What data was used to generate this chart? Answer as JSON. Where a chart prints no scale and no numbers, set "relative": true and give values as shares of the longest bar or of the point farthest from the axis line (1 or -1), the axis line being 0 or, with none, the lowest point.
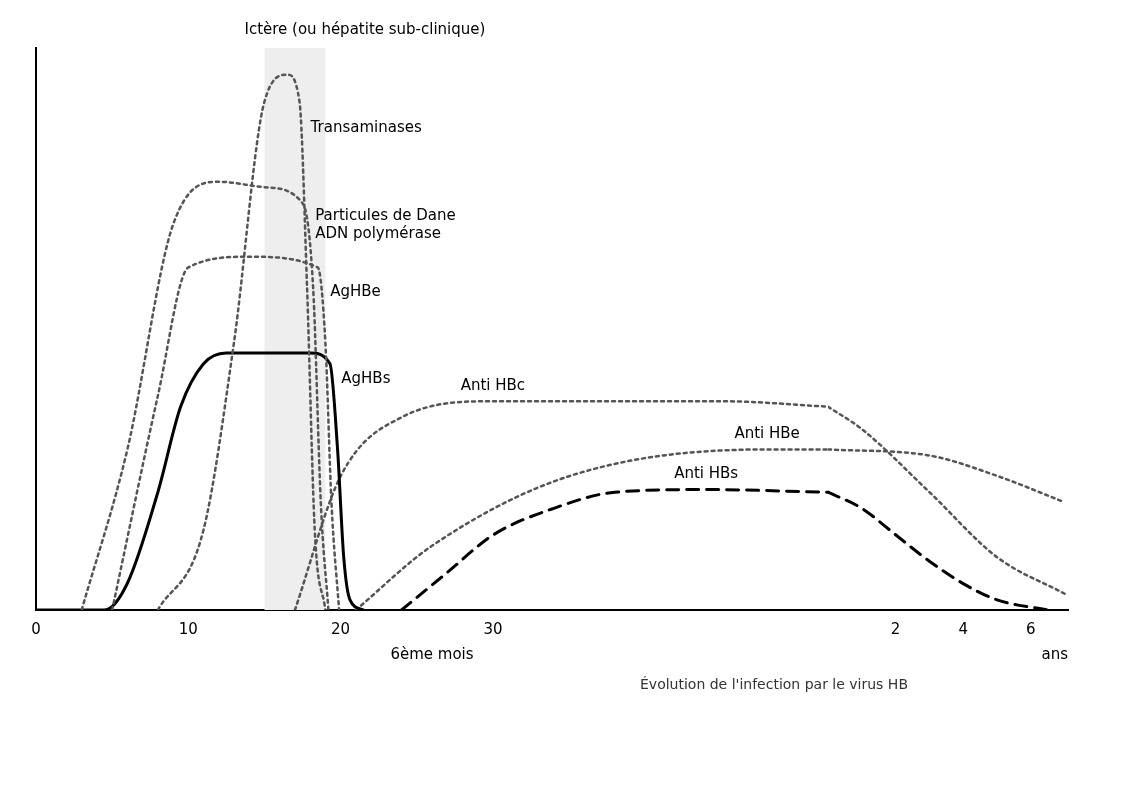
{
  "chart_data": [
    {
      "type": "line",
      "relative": true,
      "xlabel": "6ème mois",
      "xlim": [
        0,
        52
      ],
      "xticks": [
        0,
        10,
        20,
        30
      ],
      "grid": false,
      "legend": false,
      "marker": "none",
      "bands": [
        {
          "axis": "x",
          "from": 15,
          "to": 19,
          "label": "Ictère (ou hépatite sub-clinique)",
          "color": "#eeeeee"
        }
      ],
      "annotations": [
        "Évolution de l'infection par le virus HB"
      ],
      "series": [
        {
          "name": "Transaminases",
          "color": "#555555",
          "line_style": "dotted",
          "x": [
            8,
            11,
            13,
            15,
            16.5,
            17.3,
            17.8,
            18.3,
            19
          ],
          "values": [
            0,
            0.15,
            0.5,
            0.95,
            1,
            0.95,
            0.6,
            0.15,
            0
          ]
        },
        {
          "name": "Particules de Dane\nADN polymérase",
          "color": "#555555",
          "line_style": "dotted",
          "x": [
            3,
            6,
            9,
            12,
            15,
            17.5,
            18.2,
            18.7,
            19.2
          ],
          "values": [
            0,
            0.3,
            0.72,
            0.8,
            0.79,
            0.76,
            0.6,
            0.2,
            0
          ]
        },
        {
          "name": "AgHBe",
          "color": "#555555",
          "line_style": "dotted",
          "x": [
            5,
            8,
            10,
            14,
            18.5,
            19,
            19.4,
            19.9
          ],
          "values": [
            0,
            0.4,
            0.64,
            0.66,
            0.64,
            0.5,
            0.2,
            0
          ]
        },
        {
          "name": "AgHBs",
          "color": "#000000",
          "line_style": "solid",
          "x": [
            0,
            4.5,
            6,
            8,
            9.5,
            11,
            12.5,
            18,
            19.3,
            19.8,
            20.2,
            20.6,
            21.5
          ],
          "values": [
            0,
            0,
            0.05,
            0.22,
            0.38,
            0.46,
            0.48,
            0.48,
            0.46,
            0.3,
            0.1,
            0.02,
            0
          ]
        },
        {
          "name": "Anti HBe",
          "color": "#555555",
          "line_style": "dotted",
          "x": [
            21,
            26,
            35,
            48,
            52
          ],
          "values": [
            0,
            0.12,
            0.25,
            0.3,
            0.3
          ]
        },
        {
          "name": "Anti HBc",
          "color": "#555555",
          "line_style": "dotted",
          "x": [
            17,
            20,
            24,
            30,
            45,
            52
          ],
          "values": [
            0,
            0.25,
            0.36,
            0.39,
            0.39,
            0.38
          ]
        },
        {
          "name": "Anti HBs",
          "color": "#000000",
          "line_style": "dashed",
          "x": [
            24,
            27,
            30,
            34,
            38,
            44,
            52
          ],
          "values": [
            0,
            0.07,
            0.14,
            0.19,
            0.22,
            0.225,
            0.22
          ]
        }
      ]
    },
    {
      "type": "line",
      "relative": true,
      "xlabel": "ans",
      "xlim": [
        0,
        7.1
      ],
      "xticks": [
        2,
        4,
        6
      ],
      "grid": false,
      "legend": false,
      "marker": "none",
      "series": [
        {
          "color": "#555555",
          "line_style": "dotted",
          "x": [
            0,
            3,
            5,
            7
          ],
          "values": [
            0.79,
            0.76,
            0.66,
            0.53
          ]
        },
        {
          "color": "#555555",
          "line_style": "dotted",
          "x": [
            0,
            1,
            3,
            5,
            7
          ],
          "values": [
            1,
            0.89,
            0.58,
            0.26,
            0.08
          ]
        },
        {
          "color": "#000000",
          "line_style": "dashed",
          "x": [
            0,
            1,
            2,
            3,
            4,
            5,
            6.5
          ],
          "values": [
            0.58,
            0.5,
            0.37,
            0.24,
            0.13,
            0.05,
            0
          ]
        }
      ]
    }
  ]
}
